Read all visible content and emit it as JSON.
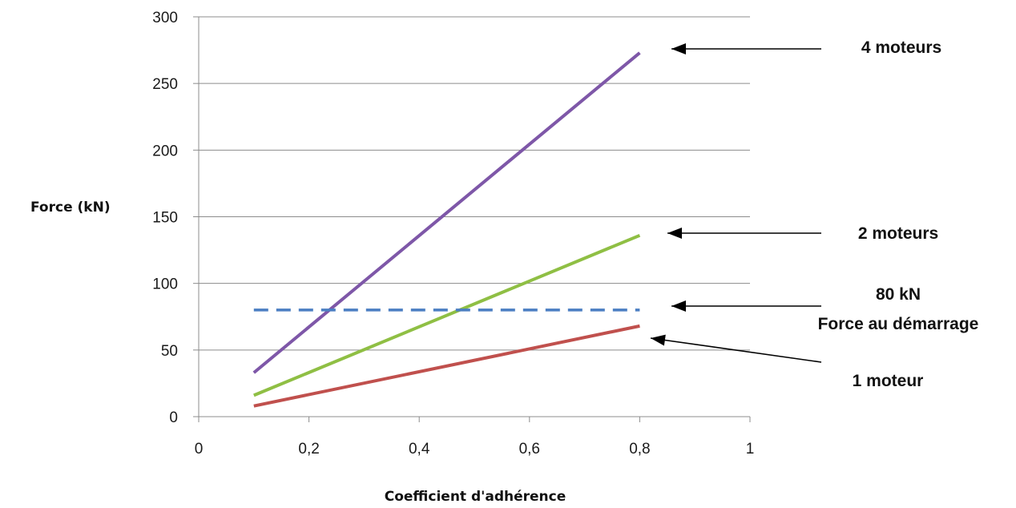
{
  "chart_data": {
    "type": "line",
    "title": "",
    "xlabel": "Coefficient d'adhérence",
    "ylabel": "Force (kN)",
    "xlim": [
      0,
      1
    ],
    "ylim": [
      0,
      300
    ],
    "xticks": [
      0,
      0.2,
      0.4,
      0.6,
      0.8,
      1
    ],
    "xtick_labels": [
      "0",
      "0,2",
      "0,4",
      "0,6",
      "0,8",
      "1"
    ],
    "yticks": [
      0,
      50,
      100,
      150,
      200,
      250,
      300
    ],
    "ytick_labels": [
      "0",
      "50",
      "100",
      "150",
      "200",
      "250",
      "300"
    ],
    "grid": "horizontal",
    "legend": "none",
    "series": [
      {
        "color": "#7e57a8",
        "style": "solid",
        "x": [
          0.1,
          0.8
        ],
        "y": [
          33,
          273
        ]
      },
      {
        "color": "#8fbf44",
        "style": "solid",
        "x": [
          0.1,
          0.8
        ],
        "y": [
          16,
          136
        ]
      },
      {
        "color": "#4a7ec2",
        "style": "dashed",
        "x": [
          0.1,
          0.8
        ],
        "y": [
          80,
          80
        ]
      },
      {
        "color": "#c0504d",
        "style": "solid",
        "x": [
          0.1,
          0.8
        ],
        "y": [
          8,
          68
        ]
      }
    ],
    "annotations": [
      {
        "lines": [
          "4 moteurs"
        ],
        "target": [
          0.8,
          273
        ]
      },
      {
        "lines": [
          "2 moteurs"
        ],
        "target": [
          0.8,
          136
        ]
      },
      {
        "lines": [
          "80 kN",
          "Force au démarrage"
        ],
        "target": [
          0.8,
          80
        ]
      },
      {
        "lines": [
          "1 moteur"
        ],
        "target": [
          0.8,
          68
        ]
      }
    ]
  }
}
